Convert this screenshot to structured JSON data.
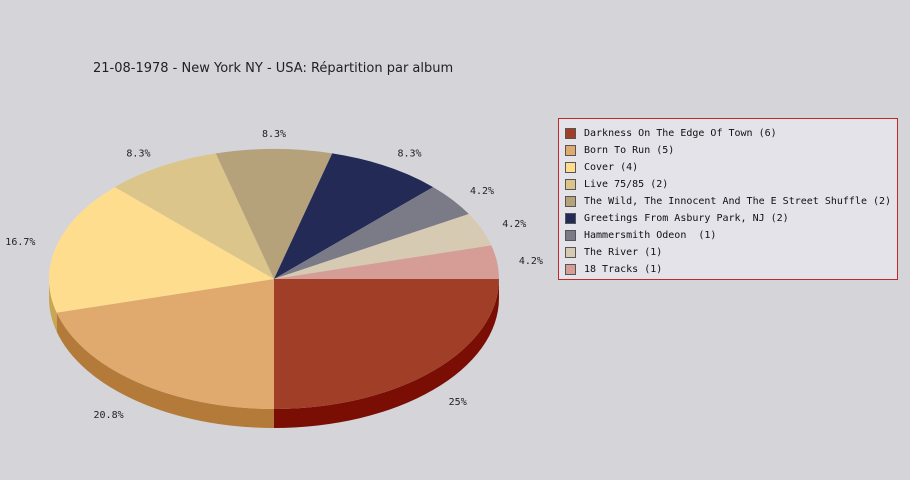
{
  "chart_data": {
    "type": "pie",
    "title": "21-08-1978 - New York NY - USA:  Répartition par album",
    "legend_position": "right",
    "slices": [
      {
        "label": "Darkness On The Edge Of Town (6)",
        "value": 6,
        "percent_label": "25%",
        "color": "#a03e28",
        "side_color": "#7a0e04"
      },
      {
        "label": "Born To Run (5)",
        "value": 5,
        "percent_label": "20.8%",
        "color": "#e0a96d",
        "side_color": "#b37a3a"
      },
      {
        "label": "Cover (4)",
        "value": 4,
        "percent_label": "16.7%",
        "color": "#fedd8f",
        "side_color": "#c9a653"
      },
      {
        "label": "Live 75/85 (2)",
        "value": 2,
        "percent_label": "8.3%",
        "color": "#dcc58a",
        "side_color": "#b09a5c"
      },
      {
        "label": "The Wild, The Innocent And The E Street Shuffle (2)",
        "value": 2,
        "percent_label": "8.3%",
        "color": "#b5a27a",
        "side_color": "#8a7752"
      },
      {
        "label": "Greetings From Asbury Park, NJ (2)",
        "value": 2,
        "percent_label": "8.3%",
        "color": "#222a55",
        "side_color": "#141a3a"
      },
      {
        "label": "Hammersmith Odeon  (1)",
        "value": 1,
        "percent_label": "4.2%",
        "color": "#7b7b88",
        "side_color": "#55555f"
      },
      {
        "label": "The River (1)",
        "value": 1,
        "percent_label": "4.2%",
        "color": "#d6cbb2",
        "side_color": "#aaa08a"
      },
      {
        "label": "18 Tracks (1)",
        "value": 1,
        "percent_label": "4.2%",
        "color": "#d59d96",
        "side_color": "#a8726c"
      }
    ]
  }
}
